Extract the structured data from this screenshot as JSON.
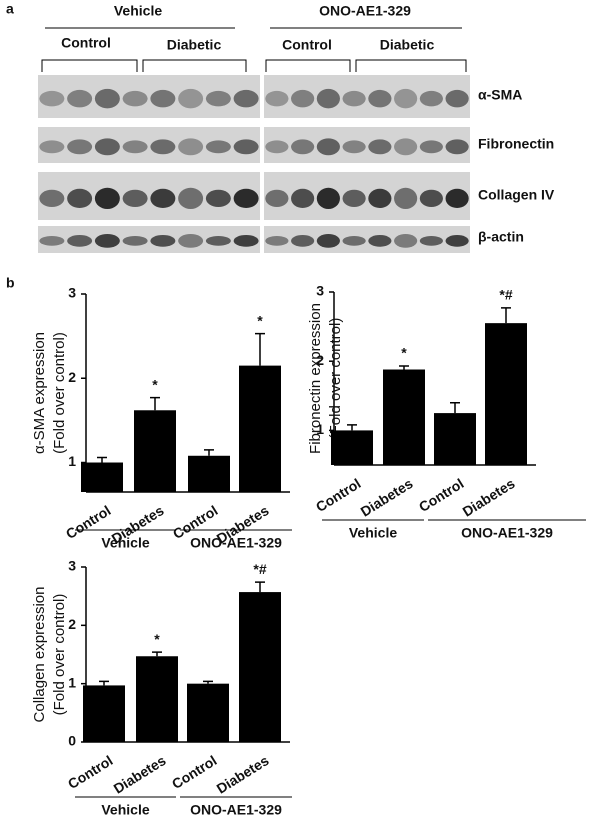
{
  "panel_a": {
    "label": "a",
    "groups": [
      {
        "name": "Vehicle",
        "subgroups": [
          "Control",
          "Diabetic"
        ]
      },
      {
        "name": "ONO-AE1-329",
        "subgroups": [
          "Control",
          "Diabetic"
        ]
      }
    ],
    "rows": [
      "α-SMA",
      "Fibronectin",
      "Collagen IV",
      "β-actin"
    ]
  },
  "panel_b_label": "b",
  "chart_data": [
    {
      "type": "bar",
      "ylabel": [
        "α-SMA expression",
        "(Fold over control)"
      ],
      "categories": [
        "Control",
        "Diabetes",
        "Control",
        "Diabetes"
      ],
      "groups": [
        "Vehicle",
        "ONO-AE1-329"
      ],
      "values": [
        1.0,
        1.62,
        1.08,
        2.15
      ],
      "errors": [
        0.06,
        0.15,
        0.07,
        0.38
      ],
      "value_annotations": [
        null,
        "*",
        null,
        "*"
      ],
      "color": "#000000",
      "ylim": [
        0.65,
        3
      ],
      "yticks": [
        1,
        2,
        3
      ]
    },
    {
      "type": "bar",
      "ylabel": [
        "Fibronectin expression",
        "(Fold over control)"
      ],
      "categories": [
        "Control",
        "Diabetes",
        "Control",
        "Diabetes"
      ],
      "groups": [
        "Vehicle",
        "ONO-AE1-329"
      ],
      "values": [
        1.0,
        1.88,
        1.25,
        2.55
      ],
      "errors": [
        0.08,
        0.05,
        0.15,
        0.22
      ],
      "value_annotations": [
        null,
        "*",
        null,
        "*#"
      ],
      "color": "#000000",
      "ylim": [
        0.5,
        3
      ],
      "yticks": [
        1,
        2,
        3
      ]
    },
    {
      "type": "bar",
      "ylabel": [
        "Collagen expression",
        "(Fold over control)"
      ],
      "categories": [
        "Control",
        "Diabetes",
        "Control",
        "Diabetes"
      ],
      "groups": [
        "Vehicle",
        "ONO-AE1-329"
      ],
      "values": [
        0.97,
        1.47,
        1.0,
        2.57
      ],
      "errors": [
        0.07,
        0.07,
        0.04,
        0.17
      ],
      "value_annotations": [
        null,
        "*",
        null,
        "*#"
      ],
      "color": "#000000",
      "ylim": [
        0,
        3
      ],
      "yticks": [
        0,
        1,
        2,
        3
      ]
    }
  ]
}
